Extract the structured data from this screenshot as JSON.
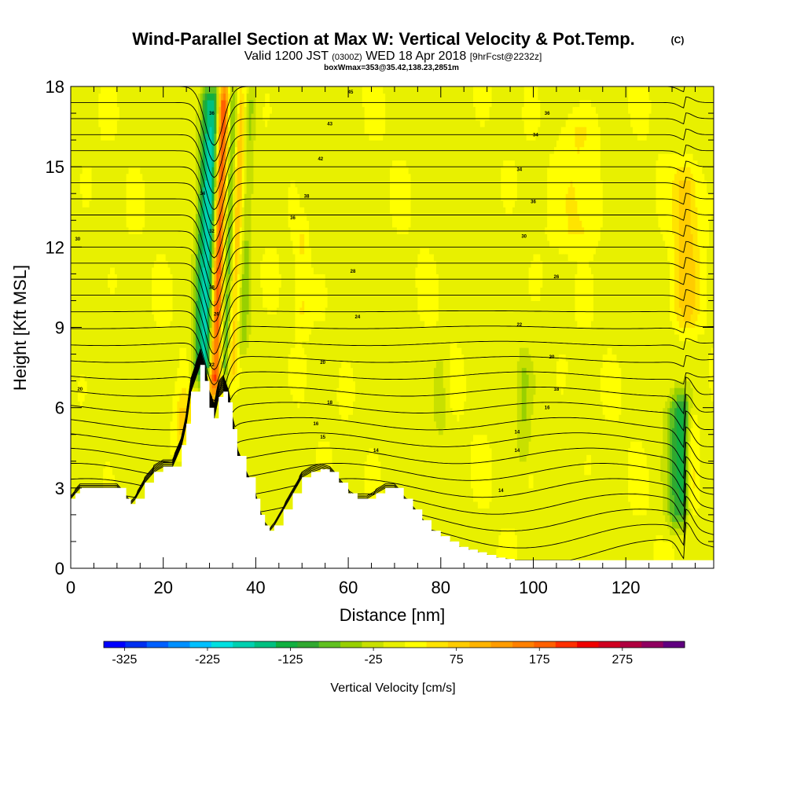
{
  "chart_data": {
    "type": "heatmap",
    "title": "Wind-Parallel Section at Max W: Vertical Velocity & Pot.Temp.",
    "title_mark": "(C)",
    "subtitle": {
      "valid_prefix": "Valid 1200 JST",
      "utc_time": "(0300Z)",
      "date": "WED 18 Apr 2018",
      "forecast": "[9hrFcst@2232z]"
    },
    "box_info": "boxWmax=353@35.42,138.23,2851m",
    "xlabel": "Distance [nm]",
    "ylabel": "Height [Kft MSL]",
    "xlim": [
      0,
      139
    ],
    "ylim": [
      0,
      18
    ],
    "x_ticks": [
      0,
      20,
      40,
      60,
      80,
      100,
      120
    ],
    "y_ticks": [
      0,
      3,
      6,
      9,
      12,
      15,
      18
    ],
    "grid": false,
    "colorbar": {
      "label": "Vertical Velocity [cm/s]",
      "tick_labels": [
        "-325",
        "-225",
        "-125",
        "-25",
        "75",
        "175",
        "275"
      ],
      "tick_values": [
        -325,
        -225,
        -125,
        -25,
        75,
        175,
        275
      ],
      "range": [
        -350,
        350
      ],
      "colors": [
        "#0000ff",
        "#0030f0",
        "#0060ff",
        "#0090ff",
        "#00c0ff",
        "#00e0e0",
        "#00d0b0",
        "#00c080",
        "#10b040",
        "#30a830",
        "#60c020",
        "#98d000",
        "#c8e000",
        "#e8f000",
        "#ffff00",
        "#ffe400",
        "#ffcc00",
        "#ffb400",
        "#ff9c00",
        "#ff8000",
        "#ff6000",
        "#ff3000",
        "#f00000",
        "#d00020",
        "#b00040",
        "#900060",
        "#600080"
      ]
    },
    "terrain_profile": {
      "x": [
        0,
        1,
        2,
        6,
        10,
        12,
        13,
        14,
        16,
        18,
        20,
        22,
        24,
        25,
        26,
        28,
        29,
        30,
        31,
        32,
        33,
        34,
        35,
        36,
        38,
        40,
        41,
        42,
        43,
        44,
        46,
        48,
        50,
        52,
        54,
        56,
        58,
        60,
        62,
        64,
        66,
        68,
        70,
        72,
        74,
        76,
        78,
        80,
        82,
        84,
        86,
        88,
        90,
        92,
        94,
        96,
        100,
        110,
        120,
        130,
        139
      ],
      "height": [
        2.6,
        2.8,
        3.0,
        3.0,
        3.0,
        2.6,
        2.4,
        2.6,
        3.2,
        3.6,
        3.8,
        3.8,
        4.6,
        5.4,
        6.6,
        7.6,
        7.0,
        6.0,
        5.6,
        6.4,
        6.6,
        6.2,
        5.2,
        4.2,
        3.4,
        2.6,
        2.0,
        1.6,
        1.4,
        1.6,
        2.2,
        2.8,
        3.4,
        3.6,
        3.7,
        3.6,
        3.2,
        2.8,
        2.6,
        2.6,
        2.8,
        3.0,
        3.0,
        2.6,
        2.2,
        1.8,
        1.4,
        1.2,
        1.0,
        0.8,
        0.7,
        0.6,
        0.5,
        0.4,
        0.35,
        0.3,
        0.3,
        0.3,
        0.3,
        0.3,
        0.3
      ]
    },
    "w_features": [
      {
        "x": 29.5,
        "z_min": 7.0,
        "z_max": 18,
        "w": -230,
        "width": 1.3
      },
      {
        "x": 31.0,
        "z_min": 6.6,
        "z_max": 18,
        "w": 300,
        "width": 1.1
      },
      {
        "x": 33.2,
        "z_min": 7.0,
        "z_max": 18,
        "w": -120,
        "width": 1.1
      },
      {
        "x": 27.3,
        "z_min": 7.0,
        "z_max": 18,
        "w": -80,
        "width": 0.9
      },
      {
        "x": 34.8,
        "z_min": 7.0,
        "z_max": 18,
        "w": 110,
        "width": 0.8
      },
      {
        "x": 37.0,
        "z_min": 8.0,
        "z_max": 18,
        "w": -50,
        "width": 0.9
      },
      {
        "x": 131.0,
        "z_min": 1.5,
        "z_max": 6.5,
        "w": -100,
        "width": 1.5
      },
      {
        "x": 132.6,
        "z_min": 2.0,
        "z_max": 6.5,
        "w": -60,
        "width": 0.9
      },
      {
        "x": 134.5,
        "z_min": 2.0,
        "z_max": 5.8,
        "w": 40,
        "width": 0.9
      },
      {
        "x": 133.0,
        "z_min": 9.0,
        "z_max": 15.0,
        "w": 70,
        "width": 2.0
      },
      {
        "x": 110.0,
        "z_min": 12.0,
        "z_max": 17.0,
        "w": 40,
        "width": 3.0
      },
      {
        "x": 98.0,
        "z_min": 4.0,
        "z_max": 8.0,
        "w": -40,
        "width": 1.0
      },
      {
        "x": 80.0,
        "z_min": 5.0,
        "z_max": 8.0,
        "w": -35,
        "width": 1.0
      },
      {
        "x": 50.0,
        "z_min": 9.0,
        "z_max": 13.0,
        "w": 35,
        "width": 1.0
      },
      {
        "x": 24.5,
        "z_min": 4.5,
        "z_max": 6.5,
        "w": 60,
        "width": 1.2
      }
    ],
    "theta_contours": {
      "count": 30,
      "labels": [
        {
          "x": 60.5,
          "y": 17.8,
          "text": "45"
        },
        {
          "x": 103,
          "y": 17.0,
          "text": "36"
        },
        {
          "x": 56,
          "y": 16.6,
          "text": "43"
        },
        {
          "x": 100.5,
          "y": 16.2,
          "text": "34"
        },
        {
          "x": 54,
          "y": 15.3,
          "text": "42"
        },
        {
          "x": 97,
          "y": 14.9,
          "text": "34"
        },
        {
          "x": 51,
          "y": 13.9,
          "text": "38"
        },
        {
          "x": 100,
          "y": 13.7,
          "text": "36"
        },
        {
          "x": 48,
          "y": 13.1,
          "text": "36"
        },
        {
          "x": 98,
          "y": 12.4,
          "text": "30"
        },
        {
          "x": 1.5,
          "y": 12.3,
          "text": "30"
        },
        {
          "x": 61,
          "y": 11.1,
          "text": "28"
        },
        {
          "x": 105,
          "y": 10.9,
          "text": "26"
        },
        {
          "x": 62,
          "y": 9.4,
          "text": "24"
        },
        {
          "x": 97,
          "y": 9.1,
          "text": "22"
        },
        {
          "x": 54.5,
          "y": 7.7,
          "text": "20"
        },
        {
          "x": 104,
          "y": 7.9,
          "text": "20"
        },
        {
          "x": 2,
          "y": 6.7,
          "text": "20"
        },
        {
          "x": 56,
          "y": 6.2,
          "text": "18"
        },
        {
          "x": 105,
          "y": 6.7,
          "text": "18"
        },
        {
          "x": 53,
          "y": 5.4,
          "text": "16"
        },
        {
          "x": 103,
          "y": 6.0,
          "text": "16"
        },
        {
          "x": 54.5,
          "y": 4.9,
          "text": "15"
        },
        {
          "x": 96.5,
          "y": 5.1,
          "text": "14"
        },
        {
          "x": 66,
          "y": 4.4,
          "text": "14"
        },
        {
          "x": 96.5,
          "y": 4.4,
          "text": "14"
        },
        {
          "x": 93,
          "y": 2.9,
          "text": "14"
        },
        {
          "x": 30.5,
          "y": 17.0,
          "text": "36"
        },
        {
          "x": 28.5,
          "y": 14.0,
          "text": "34"
        },
        {
          "x": 30.5,
          "y": 12.6,
          "text": "32"
        },
        {
          "x": 30.5,
          "y": 10.5,
          "text": "28"
        },
        {
          "x": 31.5,
          "y": 9.5,
          "text": "26"
        },
        {
          "x": 30.5,
          "y": 7.6,
          "text": "22"
        }
      ]
    }
  }
}
